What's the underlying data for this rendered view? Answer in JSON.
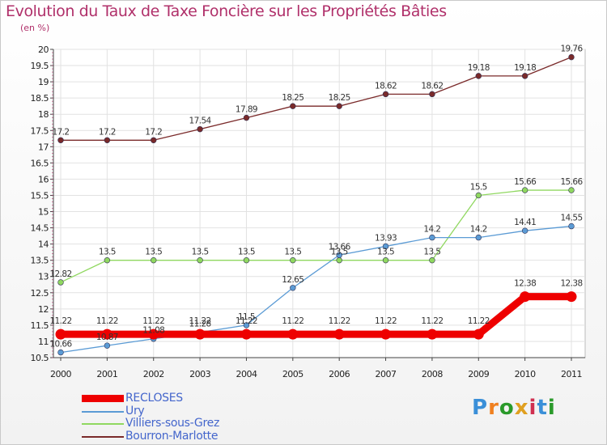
{
  "header": {
    "title": "Evolution du Taux de Taxe Foncière sur les Propriétés Bâties",
    "unit": "(en %)"
  },
  "logo": {
    "text": "Proxiti",
    "letters": [
      "P",
      "r",
      "o",
      "x",
      "i",
      "t",
      "i"
    ],
    "colors": [
      "#3a8fd8",
      "#f08020",
      "#2a9a2a",
      "#e0a020",
      "#d03050",
      "#3a8fd8",
      "#2a9a2a"
    ]
  },
  "chart_data": {
    "type": "line",
    "title": "Evolution du Taux de Taxe Foncière sur les Propriétés Bâties",
    "ylabel": "(en %)",
    "xlabel": "",
    "ylim": [
      10.5,
      20
    ],
    "yticks": [
      "10.5",
      "11",
      "11.5",
      "12",
      "12.5",
      "13",
      "13.5",
      "14",
      "14.5",
      "15",
      "15.5",
      "16",
      "16.5",
      "17",
      "17.5",
      "18",
      "18.5",
      "19",
      "19.5",
      "20"
    ],
    "categories": [
      "2000",
      "2001",
      "2002",
      "2003",
      "2004",
      "2005",
      "2006",
      "2007",
      "2008",
      "2009",
      "2010",
      "2011"
    ],
    "series": [
      {
        "name": "RECLOSES",
        "color": "#ee0000",
        "values": [
          11.22,
          11.22,
          11.22,
          11.22,
          11.22,
          11.22,
          11.22,
          11.22,
          11.22,
          11.22,
          12.38,
          12.38
        ],
        "labels": [
          "11.22",
          "11.22",
          "11.22",
          "11.22",
          "11.22",
          "11.22",
          "11.22",
          "11.22",
          "11.22",
          "11.22",
          "12.38",
          "12.38"
        ]
      },
      {
        "name": "Ury",
        "color": "#5b9bd5",
        "values": [
          10.66,
          10.87,
          11.08,
          11.28,
          11.5,
          12.65,
          13.66,
          13.93,
          14.2,
          14.2,
          14.41,
          14.55
        ],
        "labels": [
          "10.66",
          "10.87",
          "11.08",
          "11.28",
          "11.5",
          "12.65",
          "13.66",
          "13.93",
          "14.2",
          "14.2",
          "14.41",
          "14.55"
        ]
      },
      {
        "name": "Villiers-sous-Grez",
        "color": "#90d860",
        "values": [
          12.82,
          13.5,
          13.5,
          13.5,
          13.5,
          13.5,
          13.5,
          13.5,
          13.5,
          15.5,
          15.66,
          15.66
        ],
        "labels": [
          "12.82",
          "13.5",
          "13.5",
          "13.5",
          "13.5",
          "13.5",
          "13.5",
          "13.5",
          "13.5",
          "15.5",
          "15.66",
          "15.66"
        ]
      },
      {
        "name": "Bourron-Marlotte",
        "color": "#7a2a2a",
        "values": [
          17.2,
          17.2,
          17.2,
          17.54,
          17.89,
          18.25,
          18.25,
          18.62,
          18.62,
          19.18,
          19.18,
          19.76
        ],
        "labels": [
          "17.2",
          "17.2",
          "17.2",
          "17.54",
          "17.89",
          "18.25",
          "18.25",
          "18.62",
          "18.62",
          "19.18",
          "19.18",
          "19.76"
        ]
      }
    ]
  }
}
